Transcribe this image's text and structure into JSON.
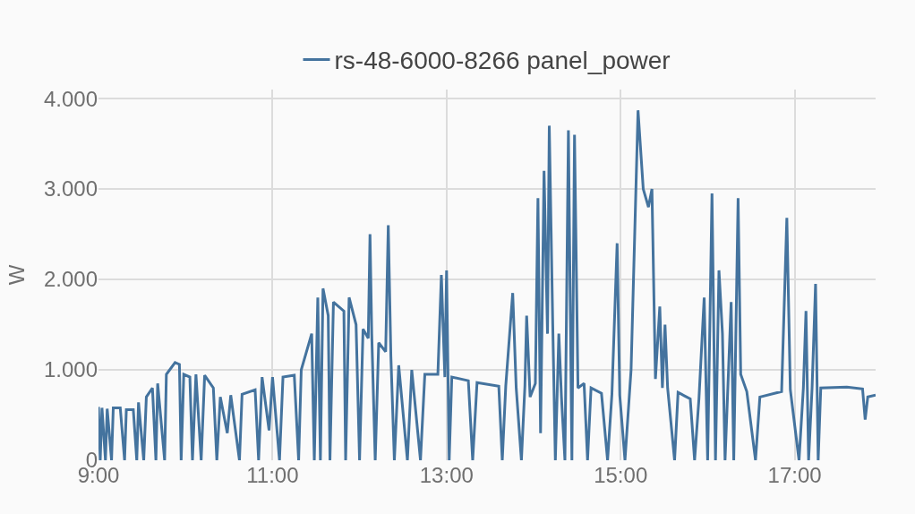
{
  "chart_data": {
    "type": "line",
    "ylabel": "W",
    "legend": "top",
    "grid": true,
    "marker": "none",
    "line_style": "solid",
    "xlim": [
      9,
      17.93
    ],
    "xticks": [
      {
        "value": 9,
        "label": "9:00"
      },
      {
        "value": 11,
        "label": "11:00"
      },
      {
        "value": 13,
        "label": "13:00"
      },
      {
        "value": 15,
        "label": "15:00"
      },
      {
        "value": 17,
        "label": "17:00"
      }
    ],
    "ylim": [
      0,
      4100
    ],
    "yticks": [
      {
        "value": 0,
        "label": "0"
      },
      {
        "value": 1000,
        "label": "1.000"
      },
      {
        "value": 2000,
        "label": "2.000"
      },
      {
        "value": 3000,
        "label": "3.000"
      },
      {
        "value": 4000,
        "label": "4.000"
      }
    ],
    "series": [
      {
        "name": "rs-48-6000-8266 panel_power",
        "color": "#44739e",
        "x": [
          9.0,
          9.02,
          9.04,
          9.08,
          9.1,
          9.15,
          9.17,
          9.25,
          9.3,
          9.32,
          9.4,
          9.44,
          9.46,
          9.52,
          9.55,
          9.62,
          9.66,
          9.68,
          9.76,
          9.78,
          9.88,
          9.93,
          9.95,
          9.98,
          10.05,
          10.08,
          10.12,
          10.18,
          10.22,
          10.32,
          10.36,
          10.4,
          10.48,
          10.52,
          10.62,
          10.65,
          10.8,
          10.84,
          10.88,
          10.96,
          11.0,
          11.08,
          11.12,
          11.25,
          11.3,
          11.33,
          11.45,
          11.48,
          11.52,
          11.55,
          11.58,
          11.64,
          11.66,
          11.7,
          11.82,
          11.84,
          11.88,
          11.96,
          12.0,
          12.04,
          12.1,
          12.12,
          12.14,
          12.18,
          12.22,
          12.3,
          12.33,
          12.36,
          12.4,
          12.45,
          12.55,
          12.6,
          12.7,
          12.75,
          12.9,
          12.94,
          12.98,
          13.0,
          13.03,
          13.06,
          13.25,
          13.3,
          13.35,
          13.6,
          13.64,
          13.68,
          13.76,
          13.8,
          13.86,
          13.9,
          13.92,
          13.96,
          14.02,
          14.05,
          14.08,
          14.12,
          14.16,
          14.18,
          14.22,
          14.25,
          14.29,
          14.32,
          14.36,
          14.4,
          14.44,
          14.47,
          14.51,
          14.58,
          14.62,
          14.66,
          14.78,
          14.85,
          14.9,
          14.96,
          14.99,
          15.05,
          15.12,
          15.2,
          15.26,
          15.32,
          15.36,
          15.4,
          15.45,
          15.48,
          15.51,
          15.54,
          15.62,
          15.66,
          15.8,
          15.85,
          15.9,
          15.96,
          16.0,
          16.05,
          16.09,
          16.13,
          16.17,
          16.2,
          16.27,
          16.3,
          16.35,
          16.38,
          16.45,
          16.55,
          16.6,
          16.85,
          16.91,
          16.95,
          17.05,
          17.1,
          17.13,
          17.16,
          17.2,
          17.24,
          17.27,
          17.3,
          17.6,
          17.78,
          17.81,
          17.84,
          17.93
        ],
        "values": [
          590,
          0,
          580,
          0,
          570,
          0,
          580,
          580,
          0,
          560,
          560,
          0,
          640,
          0,
          700,
          800,
          0,
          850,
          0,
          950,
          1080,
          1060,
          0,
          950,
          920,
          0,
          950,
          0,
          940,
          800,
          0,
          700,
          300,
          720,
          0,
          730,
          780,
          0,
          920,
          330,
          920,
          0,
          920,
          940,
          0,
          1000,
          1400,
          0,
          1800,
          0,
          1900,
          1600,
          0,
          1750,
          1650,
          0,
          1800,
          1500,
          0,
          1450,
          1350,
          2500,
          1400,
          0,
          1300,
          1200,
          2600,
          1150,
          0,
          1050,
          0,
          1000,
          0,
          950,
          950,
          2050,
          920,
          2100,
          0,
          920,
          880,
          0,
          860,
          820,
          0,
          820,
          1850,
          800,
          0,
          820,
          1600,
          700,
          850,
          2900,
          300,
          3200,
          1400,
          3700,
          1500,
          0,
          1400,
          700,
          0,
          3650,
          0,
          3600,
          800,
          850,
          0,
          800,
          740,
          0,
          730,
          2400,
          720,
          0,
          1000,
          3870,
          3000,
          2800,
          3000,
          900,
          1700,
          800,
          1500,
          800,
          0,
          750,
          680,
          0,
          680,
          1800,
          0,
          2950,
          0,
          2100,
          1400,
          0,
          1750,
          0,
          2900,
          950,
          760,
          0,
          700,
          760,
          2680,
          780,
          0,
          800,
          1650,
          0,
          800,
          1950,
          0,
          800,
          810,
          790,
          450,
          700,
          720
        ]
      }
    ]
  }
}
